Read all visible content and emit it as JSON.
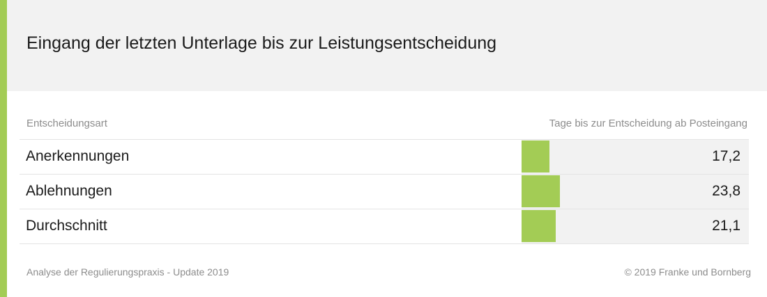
{
  "colors": {
    "accent": "#a3cc55",
    "header_bg": "#f2f2f2",
    "track_bg": "#f2f2f2",
    "text": "#1a1a1a",
    "muted": "#8c8c8c"
  },
  "chart_data": {
    "type": "bar",
    "orientation": "horizontal",
    "title": "Eingang der letzten Unterlage bis zur Leistungsentscheidung",
    "category_header": "Entscheidungsart",
    "value_header": "Tage bis zur Entscheidung ab Posteingang",
    "categories": [
      "Anerkennungen",
      "Ablehnungen",
      "Durchschnitt"
    ],
    "values": [
      17.2,
      23.8,
      21.1
    ],
    "value_labels": [
      "17,2",
      "23,8",
      "21,1"
    ],
    "xlim": [
      0,
      140
    ],
    "grid": false,
    "legend": "none"
  },
  "footer": {
    "source": "Analyse der Regulierungspraxis - Update 2019",
    "copyright": "© 2019 Franke und Bornberg"
  }
}
